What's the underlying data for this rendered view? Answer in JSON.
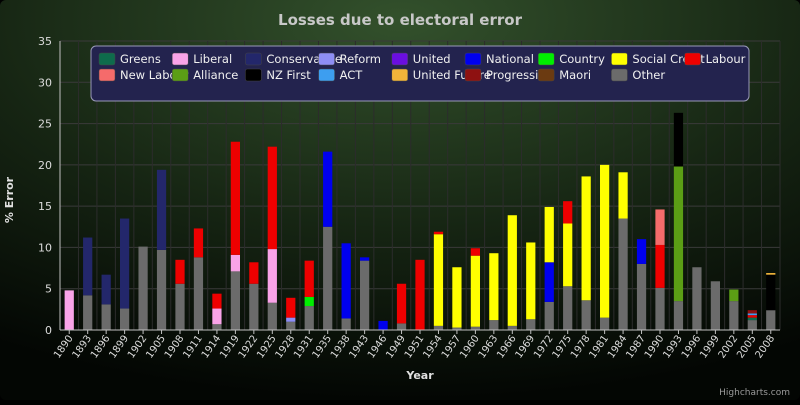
{
  "chart_data": {
    "type": "bar",
    "stacked": true,
    "title": "Losses due to electoral error",
    "xlabel": "Year",
    "ylabel": "% Error",
    "ylim": [
      0,
      35
    ],
    "yticks": [
      0,
      5,
      10,
      15,
      20,
      25,
      30,
      35
    ],
    "grid": true,
    "legend_position": "top",
    "credits": "Highcharts.com",
    "categories": [
      "1890",
      "1893",
      "1896",
      "1899",
      "1902",
      "1905",
      "1908",
      "1911",
      "1914",
      "1919",
      "1922",
      "1925",
      "1928",
      "1931",
      "1935",
      "1938",
      "1943",
      "1946",
      "1949",
      "1951",
      "1954",
      "1957",
      "1960",
      "1963",
      "1966",
      "1969",
      "1972",
      "1975",
      "1978",
      "1981",
      "1984",
      "1987",
      "1990",
      "1993",
      "1996",
      "1999",
      "2002",
      "2005",
      "2008"
    ],
    "series": [
      {
        "name": "Other",
        "color": "#6b6b6b",
        "values": [
          0,
          4.2,
          3.1,
          2.6,
          10.1,
          9.7,
          5.6,
          8.8,
          0.7,
          7.1,
          5.6,
          3.3,
          1.0,
          2.9,
          12.5,
          1.4,
          8.4,
          0,
          0.8,
          0,
          0.5,
          0.3,
          0.4,
          1.2,
          0.5,
          1.3,
          3.4,
          5.3,
          3.6,
          1.5,
          13.5,
          8.0,
          5.1,
          3.5,
          7.6,
          5.9,
          3.5,
          1.2,
          2.4
        ]
      },
      {
        "name": "Greens",
        "color": "#0e6b4c",
        "values": [
          0,
          0,
          0,
          0,
          0,
          0,
          0,
          0,
          0,
          0,
          0,
          0,
          0,
          0,
          0,
          0,
          0,
          0,
          0,
          0,
          0,
          0,
          0,
          0,
          0,
          0,
          0,
          0,
          0,
          0,
          0,
          0,
          0,
          0,
          0,
          0,
          0,
          0.3,
          0
        ]
      },
      {
        "name": "Liberal",
        "color": "#f9a3e8",
        "values": [
          4.8,
          0,
          0,
          0,
          0,
          0,
          0,
          0,
          1.9,
          2.0,
          0,
          6.5,
          0,
          0,
          0,
          0,
          0,
          0,
          0,
          0,
          0,
          0,
          0,
          0,
          0,
          0,
          0,
          0,
          0,
          0,
          0,
          0,
          0,
          0,
          0,
          0,
          0,
          0,
          0
        ]
      },
      {
        "name": "Conservative",
        "color": "#23276b",
        "values": [
          0,
          7.0,
          3.6,
          10.9,
          0,
          9.7,
          0,
          0,
          0,
          0,
          0,
          0,
          0,
          0,
          0,
          0,
          0,
          0,
          0,
          0,
          0,
          0,
          0,
          0,
          0,
          0,
          0,
          0,
          0,
          0,
          0,
          0,
          0,
          0,
          0,
          0,
          0,
          0,
          0
        ]
      },
      {
        "name": "Reform",
        "color": "#8e8ef5",
        "values": [
          0,
          0,
          0,
          0,
          0,
          0,
          0,
          0,
          0,
          0,
          0,
          0,
          0.5,
          0,
          0,
          0,
          0,
          0,
          0,
          0,
          0,
          0,
          0,
          0,
          0,
          0,
          0,
          0,
          0,
          0,
          0,
          0,
          0,
          0,
          0,
          0,
          0,
          0,
          0
        ]
      },
      {
        "name": "United",
        "color": "#6a0ee0",
        "values": [
          0,
          0,
          0,
          0,
          0,
          0,
          0,
          0,
          0,
          0,
          0,
          0,
          0,
          0,
          0,
          0,
          0,
          0,
          0,
          0,
          0,
          0,
          0,
          0,
          0,
          0,
          0,
          0,
          0,
          0,
          0,
          0,
          0,
          0,
          0,
          0,
          0,
          0,
          0
        ]
      },
      {
        "name": "National",
        "color": "#0000ee",
        "values": [
          0,
          0,
          0,
          0,
          0,
          0,
          0,
          0,
          0,
          0,
          0,
          0,
          0,
          0,
          9.1,
          9.1,
          0.4,
          1.1,
          0,
          0,
          0,
          0,
          0,
          0,
          0,
          0,
          4.8,
          0,
          0,
          0,
          0,
          3.0,
          0,
          0,
          0,
          0,
          0,
          0,
          0
        ]
      },
      {
        "name": "Country",
        "color": "#00ee00",
        "values": [
          0,
          0,
          0,
          0,
          0,
          0,
          0,
          0,
          0,
          0,
          0,
          0,
          0,
          1.1,
          0,
          0,
          0,
          0,
          0,
          0,
          0,
          0,
          0,
          0,
          0,
          0,
          0,
          0,
          0,
          0,
          0,
          0,
          0,
          0,
          0,
          0,
          0,
          0,
          0
        ]
      },
      {
        "name": "Social Credit",
        "color": "#ffff00",
        "values": [
          0,
          0,
          0,
          0,
          0,
          0,
          0,
          0,
          0,
          0,
          0,
          0,
          0,
          0,
          0,
          0,
          0,
          0,
          0,
          0,
          11.1,
          7.3,
          8.6,
          8.1,
          13.4,
          9.3,
          6.7,
          7.6,
          15.0,
          18.5,
          5.6,
          0,
          0,
          0,
          0,
          0,
          0,
          0,
          0
        ]
      },
      {
        "name": "Labour",
        "color": "#ee0000",
        "values": [
          0,
          0,
          0,
          0,
          0,
          0,
          2.9,
          3.5,
          1.8,
          13.7,
          2.6,
          12.4,
          2.4,
          4.4,
          0,
          0,
          0,
          0,
          4.8,
          8.5,
          0.3,
          0,
          0.9,
          0,
          0,
          0,
          0,
          2.7,
          0,
          0,
          0,
          0,
          5.2,
          0,
          0,
          0,
          0,
          0.3,
          0
        ]
      },
      {
        "name": "New Labour",
        "color": "#f56b6b",
        "values": [
          0,
          0,
          0,
          0,
          0,
          0,
          0,
          0,
          0,
          0,
          0,
          0,
          0,
          0,
          0,
          0,
          0,
          0,
          0,
          0,
          0,
          0,
          0,
          0,
          0,
          0,
          0,
          0,
          0,
          0,
          0,
          0,
          4.3,
          0,
          0,
          0,
          0,
          0,
          0
        ]
      },
      {
        "name": "Alliance",
        "color": "#5b9e15",
        "values": [
          0,
          0,
          0,
          0,
          0,
          0,
          0,
          0,
          0,
          0,
          0,
          0,
          0,
          0,
          0,
          0,
          0,
          0,
          0,
          0,
          0,
          0,
          0,
          0,
          0,
          0,
          0,
          0,
          0,
          0,
          0,
          0,
          0,
          16.3,
          0,
          0,
          1.4,
          0,
          0
        ]
      },
      {
        "name": "NZ First",
        "color": "#000000",
        "values": [
          0,
          0,
          0,
          0,
          0,
          0,
          0,
          0,
          0,
          0,
          0,
          0,
          0,
          0,
          0,
          0,
          0,
          0,
          0,
          0,
          0,
          0,
          0,
          0,
          0,
          0,
          0,
          0,
          0,
          0,
          0,
          0,
          0,
          6.5,
          0,
          0,
          0,
          0,
          4.3
        ]
      },
      {
        "name": "ACT",
        "color": "#3d9ef0",
        "values": [
          0,
          0,
          0,
          0,
          0,
          0,
          0,
          0,
          0,
          0,
          0,
          0,
          0,
          0,
          0,
          0,
          0,
          0,
          0,
          0,
          0,
          0,
          0,
          0,
          0,
          0,
          0,
          0,
          0,
          0,
          0,
          0,
          0,
          0,
          0,
          0,
          0,
          0.2,
          0
        ]
      },
      {
        "name": "United Future",
        "color": "#f2b43a",
        "values": [
          0,
          0,
          0,
          0,
          0,
          0,
          0,
          0,
          0,
          0,
          0,
          0,
          0,
          0,
          0,
          0,
          0,
          0,
          0,
          0,
          0,
          0,
          0,
          0,
          0,
          0,
          0,
          0,
          0,
          0,
          0,
          0,
          0,
          0,
          0,
          0,
          0,
          0,
          0.2
        ]
      },
      {
        "name": "Progressive",
        "color": "#8e1111",
        "values": [
          0,
          0,
          0,
          0,
          0,
          0,
          0,
          0,
          0,
          0,
          0,
          0,
          0,
          0,
          0,
          0,
          0,
          0,
          0,
          0,
          0,
          0,
          0,
          0,
          0,
          0,
          0,
          0,
          0,
          0,
          0,
          0,
          0,
          0,
          0,
          0,
          0,
          0.4,
          0
        ]
      },
      {
        "name": "Maori",
        "color": "#6b3a11",
        "values": [
          0,
          0,
          0,
          0,
          0,
          0,
          0,
          0,
          0,
          0,
          0,
          0,
          0,
          0,
          0,
          0,
          0,
          0,
          0,
          0,
          0,
          0,
          0,
          0,
          0,
          0,
          0,
          0,
          0,
          0,
          0,
          0,
          0,
          0,
          0,
          0,
          0,
          0,
          0
        ]
      }
    ],
    "legend_order": [
      "Greens",
      "Liberal",
      "Conservative",
      "Reform",
      "United",
      "National",
      "Country",
      "Social Credit",
      "Labour",
      "New Labour",
      "Alliance",
      "NZ First",
      "ACT",
      "United Future",
      "Progressive",
      "Maori",
      "Other"
    ]
  }
}
